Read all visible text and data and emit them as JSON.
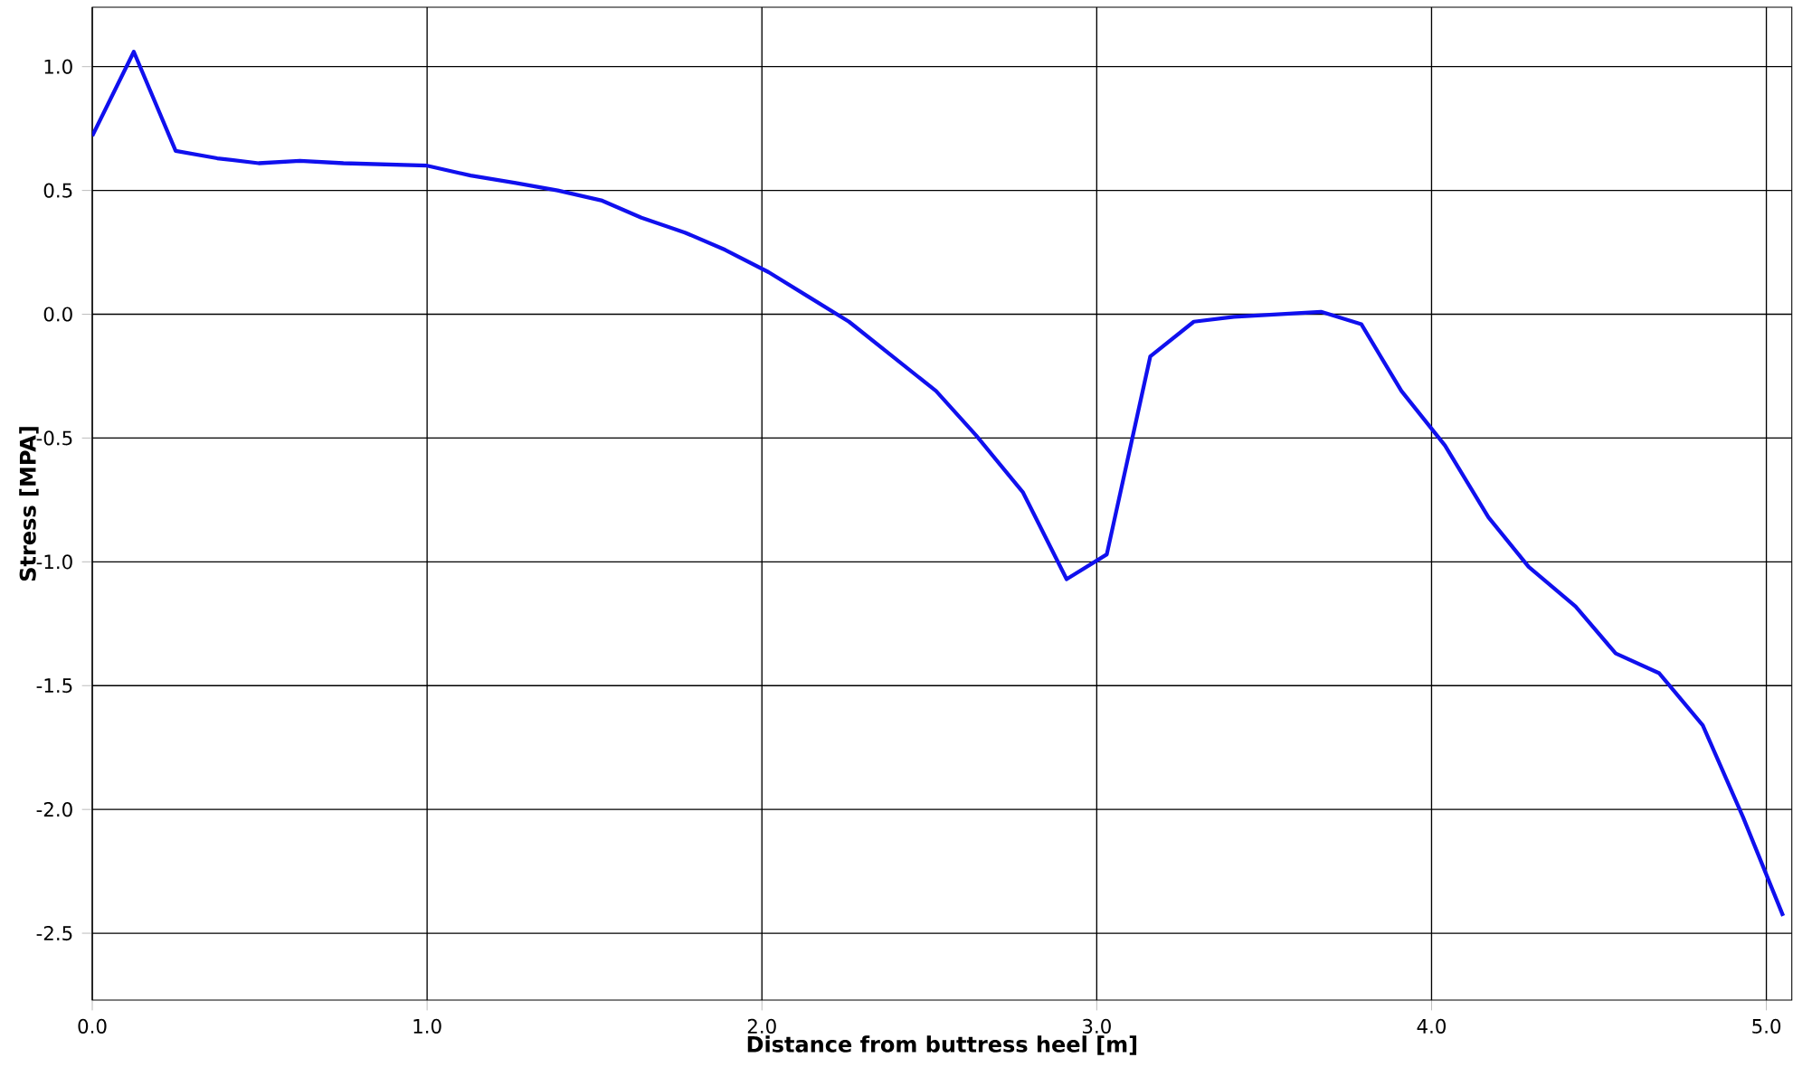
{
  "chart_data": {
    "type": "line",
    "xlabel": "Distance from buttress heel [m]",
    "ylabel": "Stress [MPA]",
    "xlim": [
      0,
      5.076
    ],
    "ylim": [
      -2.77,
      1.24
    ],
    "xticks": [
      {
        "value": 0,
        "label": "0.0"
      },
      {
        "value": 1,
        "label": "1.0"
      },
      {
        "value": 2,
        "label": "2.0"
      },
      {
        "value": 3,
        "label": "3.0"
      },
      {
        "value": 4,
        "label": "4.0"
      },
      {
        "value": 5,
        "label": "5.0"
      }
    ],
    "yticks": [
      {
        "value": -2.5,
        "label": "-2.5"
      },
      {
        "value": -2,
        "label": "-2.0"
      },
      {
        "value": -1.5,
        "label": "-1.5"
      },
      {
        "value": -1,
        "label": "-1.0"
      },
      {
        "value": -0.5,
        "label": "-0.5"
      },
      {
        "value": 0,
        "label": "0.0"
      },
      {
        "value": 0.5,
        "label": "0.5"
      },
      {
        "value": 1,
        "label": "1.0"
      }
    ],
    "grid": true,
    "marker": "none",
    "line_style": "solid",
    "series": [
      {
        "color": "#1010ee",
        "x": [
          0,
          0.124,
          0.249,
          0.373,
          0.497,
          0.62,
          0.75,
          1.0,
          1.13,
          1.265,
          1.39,
          1.52,
          1.64,
          1.77,
          1.89,
          2.02,
          2.14,
          2.26,
          2.39,
          2.52,
          2.64,
          2.78,
          2.91,
          3.03,
          3.16,
          3.29,
          3.41,
          3.67,
          3.79,
          3.91,
          4.04,
          4.17,
          4.29,
          4.43,
          4.55,
          4.68,
          4.81,
          4.93,
          5.05
        ],
        "values": [
          0.72,
          1.06,
          0.66,
          0.63,
          0.61,
          0.62,
          0.61,
          0.6,
          0.56,
          0.53,
          0.5,
          0.46,
          0.39,
          0.33,
          0.26,
          0.17,
          0.07,
          -0.03,
          -0.17,
          -0.31,
          -0.49,
          -0.72,
          -1.07,
          -0.97,
          -0.17,
          -0.03,
          -0.01,
          0.01,
          -0.04,
          -0.31,
          -0.53,
          -0.82,
          -1.02,
          -1.18,
          -1.37,
          -1.45,
          -1.66,
          -2.03,
          -2.43
        ]
      }
    ]
  }
}
